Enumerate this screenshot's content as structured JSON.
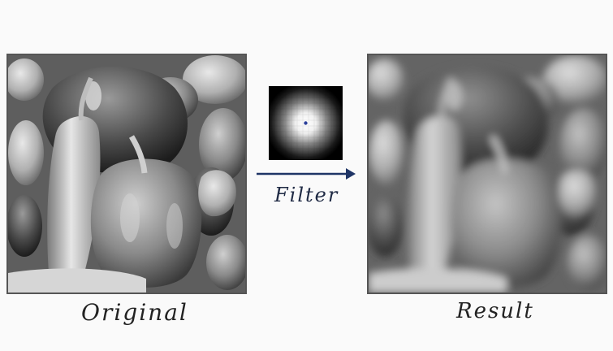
{
  "labels": {
    "original": "Original",
    "result": "Result",
    "filter": "Filter"
  },
  "colors": {
    "arrow": "#1f3566",
    "kernel_dot": "#2b3f9a",
    "background": "#fafafa"
  },
  "images": {
    "original": "peppers-grayscale-icon",
    "kernel": "gaussian-kernel-icon",
    "result": "peppers-blurred-icon"
  }
}
